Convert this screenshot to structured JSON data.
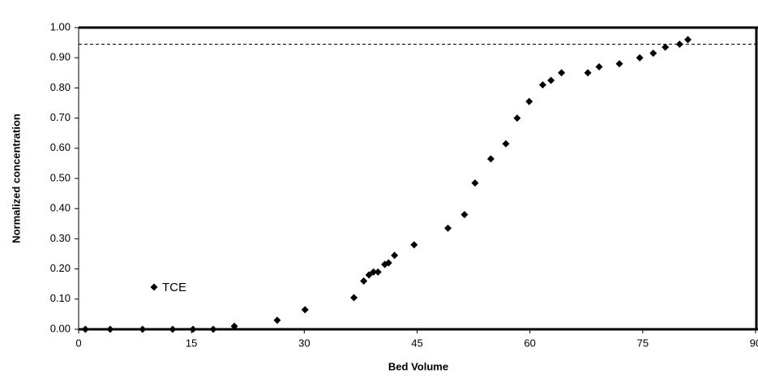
{
  "chart_data": {
    "type": "scatter",
    "x_label": "Bed Volume",
    "y_label": "Normalized concentration",
    "xlim": [
      0,
      90
    ],
    "xticks": [
      0,
      15,
      30,
      45,
      60,
      75,
      90
    ],
    "ylim": [
      0,
      1
    ],
    "yticks": [
      {
        "value": 0,
        "label": "0.00"
      },
      {
        "value": 0.1,
        "label": "0.10"
      },
      {
        "value": 0.2,
        "label": "0.20"
      },
      {
        "value": 0.3,
        "label": "0.30"
      },
      {
        "value": 0.4,
        "label": "0.40"
      },
      {
        "value": 0.5,
        "label": "0.50"
      },
      {
        "value": 0.6,
        "label": "0.60"
      },
      {
        "value": 0.7,
        "label": "0.70"
      },
      {
        "value": 0.8,
        "label": "0.80"
      },
      {
        "value": 0.9,
        "label": "0.90"
      },
      {
        "value": 1,
        "label": "1.00"
      }
    ],
    "reference_line": 0.945,
    "legend": "lower left",
    "series": [
      {
        "name": "TCE",
        "color": "#000000",
        "x": [
          0.9,
          4.2,
          8.5,
          12.5,
          15.2,
          17.9,
          20.7,
          26.4,
          30.1,
          36.6,
          37.9,
          38.6,
          39.2,
          39.8,
          40.7,
          41.2,
          42.0,
          44.6,
          49.1,
          51.3,
          52.7,
          54.8,
          56.8,
          58.3,
          59.9,
          61.7,
          62.8,
          64.2,
          67.7,
          69.2,
          71.9,
          74.6,
          76.4,
          78.0,
          79.9,
          81.0
        ],
        "values": [
          0,
          0,
          0,
          0,
          0,
          0,
          0.01,
          0.03,
          0.065,
          0.105,
          0.16,
          0.18,
          0.19,
          0.19,
          0.215,
          0.22,
          0.245,
          0.28,
          0.335,
          0.38,
          0.485,
          0.565,
          0.615,
          0.7,
          0.755,
          0.81,
          0.825,
          0.85,
          0.85,
          0.87,
          0.88,
          0.9,
          0.915,
          0.935,
          0.945,
          0.96
        ]
      }
    ]
  }
}
